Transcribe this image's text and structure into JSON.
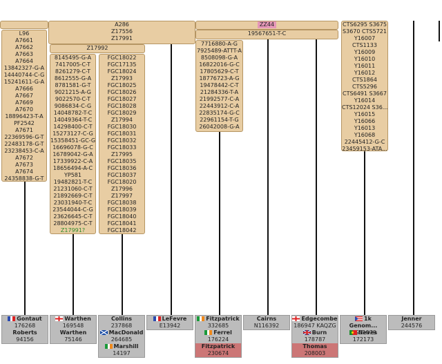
{
  "blocks": [
    {
      "lines": [
        "A286",
        "Z17556",
        "Z17991"
      ]
    },
    {
      "lines": [
        "ZZ44"
      ]
    },
    {
      "lines": [
        "19567651-T-C"
      ]
    },
    {
      "lines": [
        "L96",
        "A7661",
        "A7662",
        "A7663",
        "A7664",
        "13842327-G-A",
        "14440744-C-G",
        "15241611-G-A",
        "A7666",
        "A7667",
        "A7669",
        "A7670",
        "18896423-T-A",
        "PF2542",
        "A7671",
        "22369596-G-T",
        "22483178-G-T",
        "23238453-C-A",
        "A7672",
        "A7673",
        "A7674",
        "24358838-G-T"
      ]
    },
    {
      "lines": [
        "Z17992"
      ]
    },
    {
      "lines": [
        "8145495-G-A",
        "7417005-C-T",
        "8261279-C-T",
        "8612555-G-A",
        "8781581-G-T",
        "9021215-A-G",
        "9022570-C-T",
        "9086834-C-G",
        "14048782-T-C",
        "14049364-T-C",
        "14298400-C-T",
        "15273127-C-G",
        "15358451-GC-G",
        "16696078-G-C",
        "16789042-G-A",
        "17339922-C-A",
        "18656494-A-C",
        "YP581",
        "19482821-T-C",
        "21231060-C-T",
        "21892669-C-T",
        "23031940-T-C",
        "23544044-C-G",
        "23626645-C-T",
        "28804975-C-T",
        "Z17991?"
      ]
    },
    {
      "lines": [
        "FGC18022",
        "FGC17135",
        "FGC18024",
        "Z17993",
        "FGC18025",
        "FGC18026",
        "FGC18027",
        "FGC18028",
        "FGC18029",
        "Z17994",
        "FGC18030",
        "FGC18031",
        "FGC18032",
        "FGC18033",
        "Z17995",
        "FGC18035",
        "FGC18036",
        "FGC18037",
        "FGC18020",
        "Z17996",
        "Z17997",
        "FGC18038",
        "FGC18039",
        "FGC18040",
        "FGC18041",
        "FGC18042"
      ]
    },
    {
      "lines": [
        "7716880-A-G",
        "7925489-ATTT-A",
        "8508098-G-A",
        "16822016-G-C",
        "17805629-C-T",
        "18776723-A-G",
        "19478442-C-T",
        "21284336-T-A",
        "21992577-C-A",
        "22443912-C-A",
        "22835174-G-C",
        "22961154-T-G",
        "26042008-G-A"
      ]
    },
    {
      "lines": [
        "CTS6295 S3675",
        "S3670 CTS5721",
        "Y16007",
        "CTS1133",
        "Y16009",
        "Y16010",
        "Y16011",
        "Y16012",
        "CTS1864",
        "CTS5296",
        "CTS6491 S3667",
        "Y16014",
        "CTS12024 S36...",
        "Y16015",
        "Y16066",
        "Y16013",
        "Y16068",
        "22445412-G-C",
        "23459153-ATA..."
      ]
    }
  ],
  "groups": [
    {
      "kits": [
        {
          "name": "Gontaut",
          "id": "176268"
        },
        {
          "name": "Roberts",
          "id": "94156"
        }
      ]
    },
    {
      "kits": [
        {
          "name": "Warthen",
          "id": "169548"
        },
        {
          "name": "Warthen",
          "id": "75146"
        }
      ]
    },
    {
      "kits": [
        {
          "name": "Collins",
          "id": "237868"
        },
        {
          "name": "MacDonald",
          "id": "264685"
        },
        {
          "name": "Marshill",
          "id": "14197"
        }
      ]
    },
    {
      "kits": [
        {
          "name": "LeFevre",
          "id": "E13942"
        }
      ]
    },
    {
      "kits": [
        {
          "name": "Fitzpatrick",
          "id": "332685"
        },
        {
          "name": "Ferrel",
          "id": "176224"
        },
        {
          "name": "Fitzpatrick",
          "id": "230674"
        }
      ]
    },
    {
      "kits": [
        {
          "name": "Cairns",
          "id": "N116392"
        }
      ]
    },
    {
      "kits": [
        {
          "name": "Edgecombe",
          "id": "186947 KAQZG"
        },
        {
          "name": "Burn",
          "id": "178787"
        },
        {
          "name": "Thomas",
          "id": "208003"
        }
      ]
    },
    {
      "kits": [
        {
          "name": "1k Genom...",
          "id": "HG01079"
        },
        {
          "name": "Neves",
          "id": "172173"
        }
      ]
    },
    {
      "kits": [
        {
          "name": "Jenner",
          "id": "244576"
        }
      ]
    }
  ]
}
